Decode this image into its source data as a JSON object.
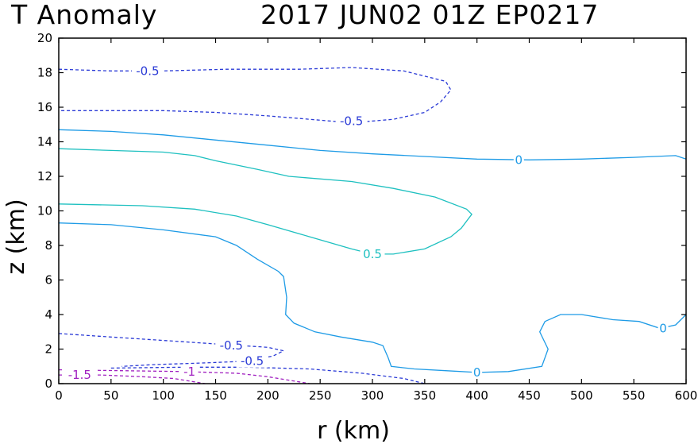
{
  "chart_data": {
    "type": "contour",
    "title_left": "T Anomaly",
    "title_right": "2017 JUN02 01Z   EP0217",
    "xlabel": "r (km)",
    "ylabel": "z (km)",
    "xlim": [
      0,
      600
    ],
    "ylim": [
      0,
      20
    ],
    "xticks": [
      0,
      50,
      100,
      150,
      200,
      250,
      300,
      350,
      400,
      450,
      500,
      550,
      600
    ],
    "yticks": [
      0,
      2,
      4,
      6,
      8,
      10,
      12,
      14,
      16,
      18,
      20
    ],
    "grid": false,
    "colors": {
      "level_0": "#1e9be6",
      "level_0.5": "#1ec0c0",
      "level_-0.5": "#2a3ad6",
      "level_-1": "#a020c0",
      "level_-1.5": "#a020c0"
    },
    "contours": [
      {
        "level": 0,
        "style": "solid",
        "points": [
          [
            0,
            14.7
          ],
          [
            50,
            14.6
          ],
          [
            100,
            14.4
          ],
          [
            150,
            14.1
          ],
          [
            200,
            13.8
          ],
          [
            250,
            13.5
          ],
          [
            300,
            13.3
          ],
          [
            350,
            13.15
          ],
          [
            400,
            13.0
          ],
          [
            450,
            12.95
          ],
          [
            500,
            13.0
          ],
          [
            550,
            13.1
          ],
          [
            590,
            13.2
          ],
          [
            600,
            13.0
          ]
        ]
      },
      {
        "level": 0,
        "style": "solid",
        "points": [
          [
            0,
            9.3
          ],
          [
            50,
            9.2
          ],
          [
            100,
            8.9
          ],
          [
            150,
            8.5
          ],
          [
            170,
            8.0
          ],
          [
            190,
            7.2
          ],
          [
            210,
            6.5
          ],
          [
            215,
            6.2
          ],
          [
            218,
            5.0
          ],
          [
            217,
            4.0
          ],
          [
            225,
            3.5
          ],
          [
            245,
            3.0
          ],
          [
            270,
            2.7
          ],
          [
            300,
            2.4
          ],
          [
            310,
            2.2
          ],
          [
            315,
            1.5
          ],
          [
            318,
            1.0
          ],
          [
            340,
            0.85
          ],
          [
            370,
            0.75
          ],
          [
            400,
            0.65
          ],
          [
            430,
            0.7
          ],
          [
            462,
            1.0
          ],
          [
            468,
            2.0
          ],
          [
            460,
            3.0
          ],
          [
            465,
            3.6
          ],
          [
            480,
            4.0
          ],
          [
            500,
            4.0
          ],
          [
            530,
            3.7
          ],
          [
            555,
            3.6
          ],
          [
            575,
            3.2
          ],
          [
            590,
            3.4
          ],
          [
            600,
            4.0
          ]
        ]
      },
      {
        "level": 0.5,
        "style": "solid",
        "points": [
          [
            0,
            13.6
          ],
          [
            50,
            13.5
          ],
          [
            100,
            13.4
          ],
          [
            130,
            13.2
          ],
          [
            150,
            12.9
          ],
          [
            190,
            12.4
          ],
          [
            220,
            12.0
          ],
          [
            280,
            11.7
          ],
          [
            320,
            11.3
          ],
          [
            360,
            10.8
          ],
          [
            390,
            10.1
          ],
          [
            395,
            9.8
          ],
          [
            385,
            9.0
          ],
          [
            375,
            8.5
          ],
          [
            350,
            7.8
          ],
          [
            320,
            7.5
          ],
          [
            300,
            7.5
          ],
          [
            280,
            7.8
          ],
          [
            240,
            8.5
          ],
          [
            200,
            9.2
          ],
          [
            170,
            9.7
          ],
          [
            130,
            10.1
          ],
          [
            80,
            10.3
          ],
          [
            0,
            10.4
          ]
        ]
      },
      {
        "level": -0.5,
        "style": "dashed",
        "points": [
          [
            0,
            18.2
          ],
          [
            50,
            18.1
          ],
          [
            100,
            18.1
          ],
          [
            160,
            18.2
          ],
          [
            230,
            18.2
          ],
          [
            280,
            18.3
          ],
          [
            330,
            18.1
          ],
          [
            370,
            17.5
          ],
          [
            375,
            17.0
          ],
          [
            365,
            16.3
          ],
          [
            350,
            15.7
          ],
          [
            320,
            15.3
          ],
          [
            280,
            15.1
          ],
          [
            240,
            15.3
          ],
          [
            200,
            15.5
          ],
          [
            150,
            15.7
          ],
          [
            100,
            15.8
          ],
          [
            0,
            15.8
          ]
        ]
      },
      {
        "level": -0.5,
        "style": "dashed",
        "points": [
          [
            0,
            2.9
          ],
          [
            50,
            2.7
          ],
          [
            100,
            2.5
          ],
          [
            150,
            2.3
          ],
          [
            200,
            2.1
          ],
          [
            215,
            1.9
          ],
          [
            205,
            1.6
          ],
          [
            180,
            1.3
          ],
          [
            140,
            1.2
          ],
          [
            90,
            1.1
          ],
          [
            60,
            1.0
          ]
        ]
      },
      {
        "level": -0.5,
        "style": "dashed",
        "points": [
          [
            50,
            0.9
          ],
          [
            120,
            0.95
          ],
          [
            180,
            0.95
          ],
          [
            240,
            0.85
          ],
          [
            290,
            0.6
          ],
          [
            330,
            0.3
          ],
          [
            350,
            0.0
          ]
        ]
      },
      {
        "level": -1,
        "style": "dashed",
        "points": [
          [
            0,
            0.8
          ],
          [
            60,
            0.75
          ],
          [
            120,
            0.7
          ],
          [
            170,
            0.6
          ],
          [
            200,
            0.4
          ],
          [
            230,
            0.1
          ],
          [
            240,
            0.0
          ]
        ]
      },
      {
        "level": -1.5,
        "style": "dashed",
        "points": [
          [
            0,
            0.5
          ],
          [
            40,
            0.5
          ],
          [
            80,
            0.4
          ],
          [
            110,
            0.3
          ],
          [
            130,
            0.1
          ],
          [
            140,
            0.0
          ]
        ]
      }
    ],
    "labels": [
      {
        "text": "-0.5",
        "x": 85,
        "y": 18.1,
        "level": -0.5
      },
      {
        "text": "-0.5",
        "x": 280,
        "y": 15.2,
        "level": -0.5
      },
      {
        "text": "0",
        "x": 440,
        "y": 12.95,
        "level": 0
      },
      {
        "text": "0.5",
        "x": 300,
        "y": 7.5,
        "level": 0.5
      },
      {
        "text": "-0.5",
        "x": 165,
        "y": 2.2,
        "level": -0.5
      },
      {
        "text": "-0.5",
        "x": 185,
        "y": 1.3,
        "level": -0.5
      },
      {
        "text": "0",
        "x": 400,
        "y": 0.65,
        "level": 0
      },
      {
        "text": "0",
        "x": 578,
        "y": 3.2,
        "level": 0
      },
      {
        "text": "-1",
        "x": 125,
        "y": 0.7,
        "level": -1
      },
      {
        "text": "-1.5",
        "x": 20,
        "y": 0.5,
        "level": -1.5
      }
    ]
  }
}
